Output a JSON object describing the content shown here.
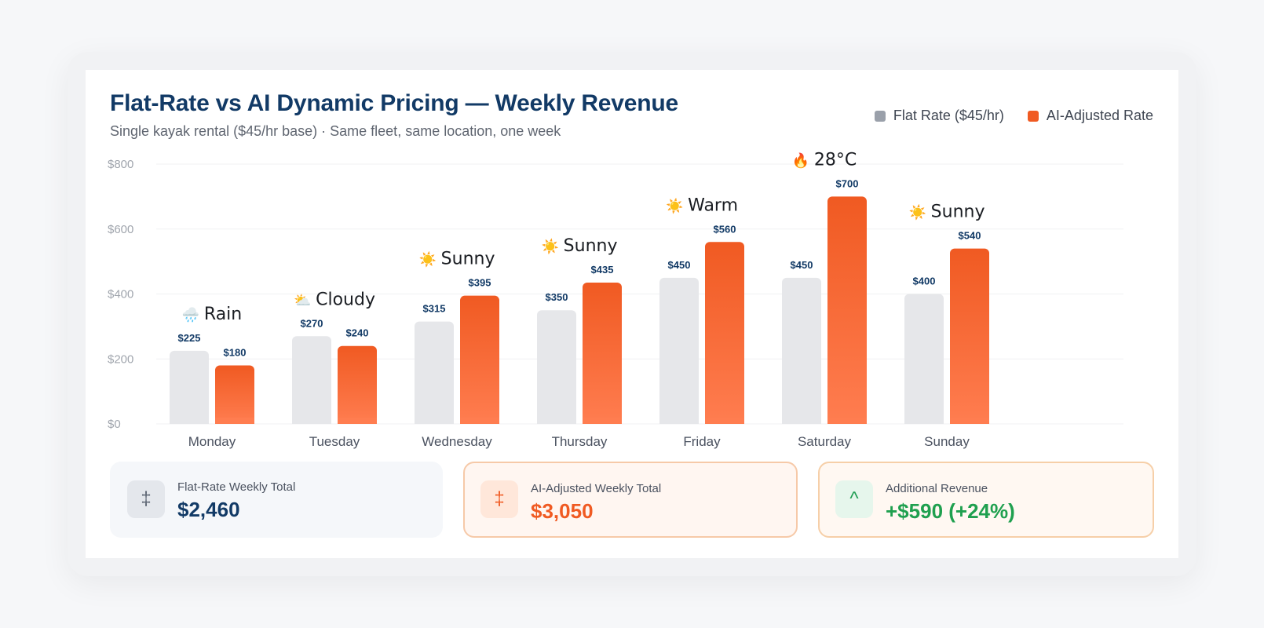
{
  "colors": {
    "flat": "#e6e7ea",
    "ai_top": "#f05a22",
    "ai_bottom": "#ff7d50",
    "value_label": "#123a66",
    "axis_label": "#a0a5ad"
  },
  "legend": {
    "flat_label": "Flat Rate ($45/hr)",
    "ai_label": "AI-Adjusted Rate"
  },
  "chart_data": {
    "type": "bar",
    "title": "Flat-Rate vs AI Dynamic Pricing — Weekly Revenue",
    "subtitle": "Single kayak rental ($45/hr base) · Same fleet, same location, one week",
    "categories": [
      "Monday",
      "Tuesday",
      "Wednesday",
      "Thursday",
      "Friday",
      "Saturday",
      "Sunday"
    ],
    "series": [
      {
        "name": "Flat Rate ($45/hr)",
        "values": [
          225,
          270,
          315,
          350,
          450,
          450,
          400
        ],
        "labels": [
          "$225",
          "$270",
          "$315",
          "$350",
          "$450",
          "$450",
          "$400"
        ]
      },
      {
        "name": "AI-Adjusted Rate",
        "values": [
          180,
          240,
          395,
          435,
          560,
          700,
          540
        ],
        "labels": [
          "$180",
          "$240",
          "$395",
          "$435",
          "$560",
          "$700",
          "$540"
        ]
      }
    ],
    "annotations": [
      {
        "icon": "rain-cloud-icon",
        "glyph": "🌧️",
        "text": "Rain"
      },
      {
        "icon": "partly-cloudy-icon",
        "glyph": "⛅",
        "text": "Cloudy"
      },
      {
        "icon": "sun-icon",
        "glyph": "☀️",
        "text": "Sunny"
      },
      {
        "icon": "sun-icon",
        "glyph": "☀️",
        "text": "Sunny"
      },
      {
        "icon": "sun-icon",
        "glyph": "☀️",
        "text": "Warm"
      },
      {
        "icon": "fire-icon",
        "glyph": "🔥",
        "text": "28°C"
      },
      {
        "icon": "sun-icon",
        "glyph": "☀️",
        "text": "Sunny"
      }
    ],
    "yticks": [
      0,
      200,
      400,
      600,
      800
    ],
    "ytick_labels": [
      "$0",
      "$200",
      "$400",
      "$600",
      "$800"
    ],
    "ylim": [
      0,
      800
    ],
    "grid": true,
    "legend_position": "top-right"
  },
  "summary": [
    {
      "icon": "double-dagger-icon",
      "glyph": "‡",
      "label": "Flat-Rate Weekly Total",
      "value": "$2,460"
    },
    {
      "icon": "double-dagger-icon",
      "glyph": "‡",
      "label": "AI-Adjusted Weekly Total",
      "value": "$3,050"
    },
    {
      "icon": "caret-up-icon",
      "glyph": "^",
      "label": "Additional Revenue",
      "value": "+$590 (+24%)"
    }
  ]
}
